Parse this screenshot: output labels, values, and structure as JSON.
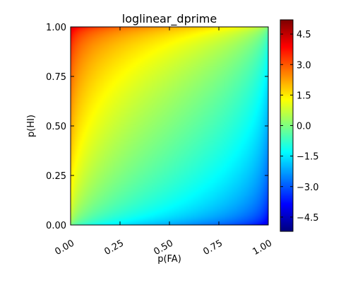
{
  "chart_data": {
    "type": "heatmap",
    "title": "loglinear_dprime",
    "xlabel": "p(FA)",
    "ylabel": "p(HI)",
    "xlim": [
      0.0,
      1.0
    ],
    "ylim": [
      0.0,
      1.0
    ],
    "x_ticks": [
      "0.00",
      "0.25",
      "0.50",
      "0.75",
      "1.00"
    ],
    "x_tick_values": [
      0.0,
      0.25,
      0.5,
      0.75,
      1.0
    ],
    "y_ticks": [
      "0.00",
      "0.25",
      "0.50",
      "0.75",
      "1.00"
    ],
    "y_tick_values": [
      0.0,
      0.25,
      0.5,
      0.75,
      1.0
    ],
    "colorbar": {
      "range": [
        -5.2,
        5.2
      ],
      "ticks": [
        "−4.5",
        "−3.0",
        "−1.5",
        "0.0",
        "1.5",
        "3.0",
        "4.5"
      ],
      "tick_values": [
        -4.5,
        -3.0,
        -1.5,
        0.0,
        1.5,
        3.0,
        4.5
      ],
      "colormap": "jet"
    },
    "value_function": "dprime = z(p(HI)) - z(p(FA))",
    "corner_values": {
      "top_left": 5.2,
      "bottom_right": -5.2,
      "bottom_left": 0.0,
      "top_right": 0.0
    },
    "grid": false
  }
}
